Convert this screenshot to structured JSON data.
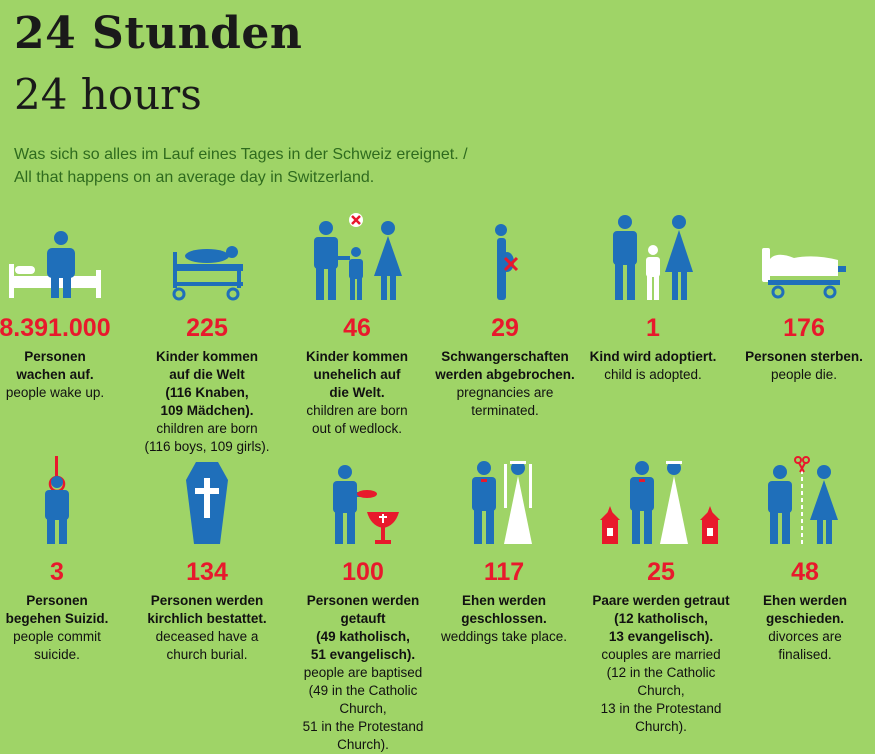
{
  "header": {
    "title_de": "24 Stunden",
    "title_en": "24 hours",
    "subtitle_de": "Was sich so alles im Lauf eines Tages in der Schweiz ereignet. /",
    "subtitle_en": "All that happens on an average day in Switzerland."
  },
  "colors": {
    "background": "#9fd467",
    "icon_blue": "#1f6fba",
    "number_red": "#e8192c",
    "subtitle_green": "#2f6b1e"
  },
  "stats": [
    {
      "icon": "person-waking-in-bed-icon",
      "number": "8.391.000",
      "de": "Personen\nwachen auf.",
      "en": "people wake up."
    },
    {
      "icon": "newborn-on-stretcher-icon",
      "number": "225",
      "de": "Kinder kommen\nauf die Welt\n(116 Knaben,\n109 Mädchen).",
      "en": "children are born\n(116 boys, 109 girls)."
    },
    {
      "icon": "unmarried-family-icon",
      "number": "46",
      "de": "Kinder kommen\nunehelich auf\ndie Welt.",
      "en": "children are born\nout of wedlock."
    },
    {
      "icon": "pregnancy-crossed-icon",
      "number": "29",
      "de": "Schwangerschaften\nwerden abgebrochen.",
      "en": "pregnancies are\nterminated."
    },
    {
      "icon": "adoption-family-icon",
      "number": "1",
      "de": "Kind wird adoptiert.",
      "en": "child is adopted."
    },
    {
      "icon": "covered-body-on-stretcher-icon",
      "number": "176",
      "de": "Personen sterben.",
      "en": "people die."
    },
    {
      "icon": "person-with-noose-icon",
      "number": "3",
      "de": "Personen\nbegehen Suizid.",
      "en": "people commit\nsuicide."
    },
    {
      "icon": "coffin-cross-icon",
      "number": "134",
      "de": "Personen werden\nkirchlich bestattet.",
      "en": "deceased have a\nchurch burial."
    },
    {
      "icon": "baptism-font-icon",
      "number": "100",
      "de": "Personen werden getauft\n(49 katholisch,\n51 evangelisch).",
      "en": "people are baptised\n(49 in the Catholic Church,\n51 in the Protestand Church)."
    },
    {
      "icon": "wedding-couple-icon",
      "number": "117",
      "de": "Ehen werden\ngeschlossen.",
      "en": "weddings take place."
    },
    {
      "icon": "church-wedding-icon",
      "number": "25",
      "de": "Paare werden getraut\n(12 katholisch,\n13 evangelisch).",
      "en": "couples are married\n(12 in the Catholic Church,\n13 in the Protestand Church)."
    },
    {
      "icon": "divorce-scissors-icon",
      "number": "48",
      "de": "Ehen werden\ngeschieden.",
      "en": "divorces are\nfinalised."
    }
  ]
}
